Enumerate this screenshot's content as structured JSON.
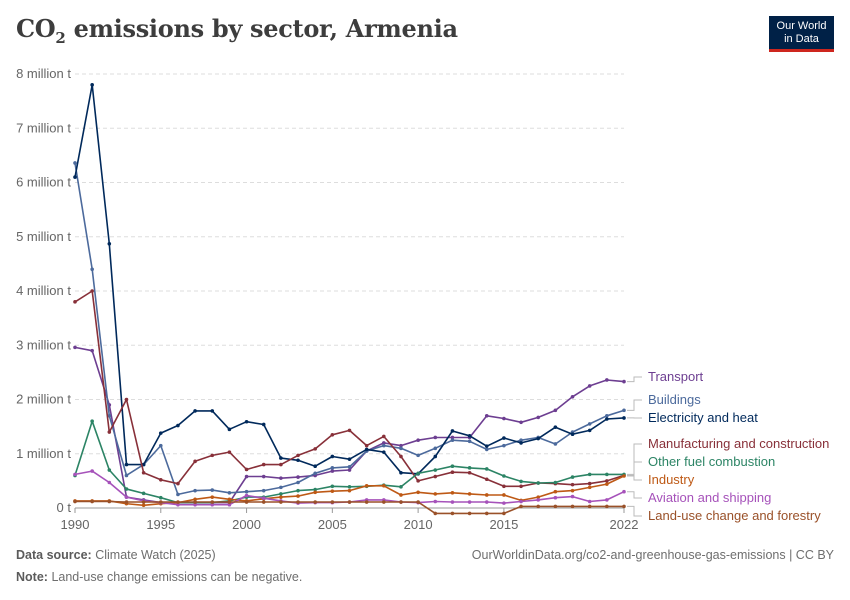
{
  "header": {
    "title_main": "CO",
    "title_sub": "2",
    "title_rest": " emissions by sector, Armenia",
    "logo_line1": "Our World",
    "logo_line2": "in Data"
  },
  "footer": {
    "source_label": "Data source:",
    "source_value": "Climate Watch (2025)",
    "note_label": "Note:",
    "note_value": "Land-use change emissions can be negative.",
    "url": "OurWorldinData.org/co2-and-greenhouse-gas-emissions | CC BY"
  },
  "chart_data": {
    "type": "line",
    "title": "CO₂ emissions by sector, Armenia",
    "y_ticks": [
      {
        "v": 0,
        "label": "0 t"
      },
      {
        "v": 1000000,
        "label": "1 million t"
      },
      {
        "v": 2000000,
        "label": "2 million t"
      },
      {
        "v": 3000000,
        "label": "3 million t"
      },
      {
        "v": 4000000,
        "label": "4 million t"
      },
      {
        "v": 5000000,
        "label": "5 million t"
      },
      {
        "v": 6000000,
        "label": "6 million t"
      },
      {
        "v": 7000000,
        "label": "7 million t"
      },
      {
        "v": 8000000,
        "label": "8 million t"
      }
    ],
    "x_ticks": [
      1990,
      1995,
      2000,
      2005,
      2010,
      2015,
      2022
    ],
    "xlim": [
      1990,
      2022
    ],
    "ylim": [
      0,
      8000000
    ],
    "grid": true,
    "legend": "right",
    "x": [
      1990,
      1991,
      1992,
      1993,
      1994,
      1995,
      1996,
      1997,
      1998,
      1999,
      2000,
      2001,
      2002,
      2003,
      2004,
      2005,
      2006,
      2007,
      2008,
      2009,
      2010,
      2011,
      2012,
      2013,
      2014,
      2015,
      2016,
      2017,
      2018,
      2019,
      2020,
      2021,
      2022
    ],
    "series": [
      {
        "name": "Transport",
        "color": "#6d3e91",
        "values": [
          2960000,
          2900000,
          1900000,
          200000,
          150000,
          100000,
          100000,
          100000,
          100000,
          100000,
          580000,
          580000,
          550000,
          570000,
          600000,
          680000,
          700000,
          1050000,
          1200000,
          1150000,
          1250000,
          1300000,
          1300000,
          1300000,
          1700000,
          1650000,
          1580000,
          1670000,
          1800000,
          2050000,
          2250000,
          2360000,
          2330000
        ]
      },
      {
        "name": "Buildings",
        "color": "#4c6a9c",
        "values": [
          6360000,
          4400000,
          1700000,
          600000,
          800000,
          1150000,
          250000,
          320000,
          330000,
          280000,
          300000,
          320000,
          380000,
          470000,
          640000,
          740000,
          760000,
          1050000,
          1150000,
          1100000,
          970000,
          1100000,
          1250000,
          1230000,
          1080000,
          1150000,
          1250000,
          1300000,
          1180000,
          1400000,
          1550000,
          1700000,
          1800000
        ]
      },
      {
        "name": "Electricity and heat",
        "color": "#00295b",
        "values": [
          6100000,
          7800000,
          4870000,
          800000,
          800000,
          1380000,
          1520000,
          1790000,
          1790000,
          1450000,
          1590000,
          1540000,
          920000,
          880000,
          770000,
          950000,
          900000,
          1080000,
          1030000,
          650000,
          630000,
          950000,
          1420000,
          1330000,
          1140000,
          1290000,
          1200000,
          1280000,
          1490000,
          1360000,
          1430000,
          1640000,
          1660000
        ]
      },
      {
        "name": "Manufacturing and construction",
        "color": "#883039",
        "values": [
          3800000,
          4000000,
          1400000,
          2000000,
          650000,
          520000,
          450000,
          860000,
          970000,
          1030000,
          710000,
          800000,
          800000,
          970000,
          1090000,
          1350000,
          1430000,
          1150000,
          1320000,
          950000,
          500000,
          580000,
          660000,
          650000,
          530000,
          400000,
          400000,
          460000,
          450000,
          430000,
          450000,
          500000,
          600000
        ]
      },
      {
        "name": "Other fuel combustion",
        "color": "#2c8465",
        "values": [
          600000,
          1600000,
          700000,
          350000,
          270000,
          190000,
          100000,
          100000,
          100000,
          130000,
          200000,
          200000,
          260000,
          320000,
          340000,
          400000,
          390000,
          400000,
          420000,
          390000,
          640000,
          700000,
          770000,
          740000,
          720000,
          590000,
          490000,
          460000,
          470000,
          570000,
          620000,
          620000,
          620000
        ]
      },
      {
        "name": "Industry",
        "color": "#be5915",
        "values": [
          130000,
          130000,
          130000,
          80000,
          50000,
          80000,
          100000,
          160000,
          200000,
          160000,
          130000,
          170000,
          200000,
          220000,
          290000,
          310000,
          320000,
          410000,
          410000,
          240000,
          290000,
          260000,
          280000,
          260000,
          240000,
          240000,
          140000,
          200000,
          300000,
          320000,
          380000,
          440000,
          590000
        ]
      },
      {
        "name": "Aviation and shipping",
        "color": "#a652ba",
        "values": [
          620000,
          680000,
          470000,
          200000,
          130000,
          100000,
          60000,
          60000,
          60000,
          60000,
          230000,
          180000,
          130000,
          90000,
          100000,
          100000,
          110000,
          150000,
          150000,
          110000,
          100000,
          120000,
          110000,
          110000,
          110000,
          90000,
          120000,
          150000,
          190000,
          210000,
          120000,
          150000,
          300000
        ]
      },
      {
        "name": "Land-use change and forestry",
        "color": "#9a5129",
        "values": [
          120000,
          120000,
          120000,
          110000,
          110000,
          110000,
          110000,
          110000,
          110000,
          110000,
          110000,
          110000,
          110000,
          110000,
          110000,
          110000,
          110000,
          110000,
          110000,
          110000,
          110000,
          -100000,
          -100000,
          -100000,
          -100000,
          -100000,
          30000,
          30000,
          30000,
          30000,
          30000,
          30000,
          30000
        ]
      }
    ],
    "labels": [
      {
        "name": "Transport",
        "y": 381
      },
      {
        "name": "Buildings",
        "y": 404
      },
      {
        "name": "Electricity and heat",
        "y": 422
      },
      {
        "name": "Manufacturing and construction",
        "y": 448
      },
      {
        "name": "Other fuel combustion",
        "y": 466
      },
      {
        "name": "Industry",
        "y": 484
      },
      {
        "name": "Aviation and shipping",
        "y": 502
      },
      {
        "name": "Land-use change and forestry",
        "y": 520
      }
    ]
  }
}
